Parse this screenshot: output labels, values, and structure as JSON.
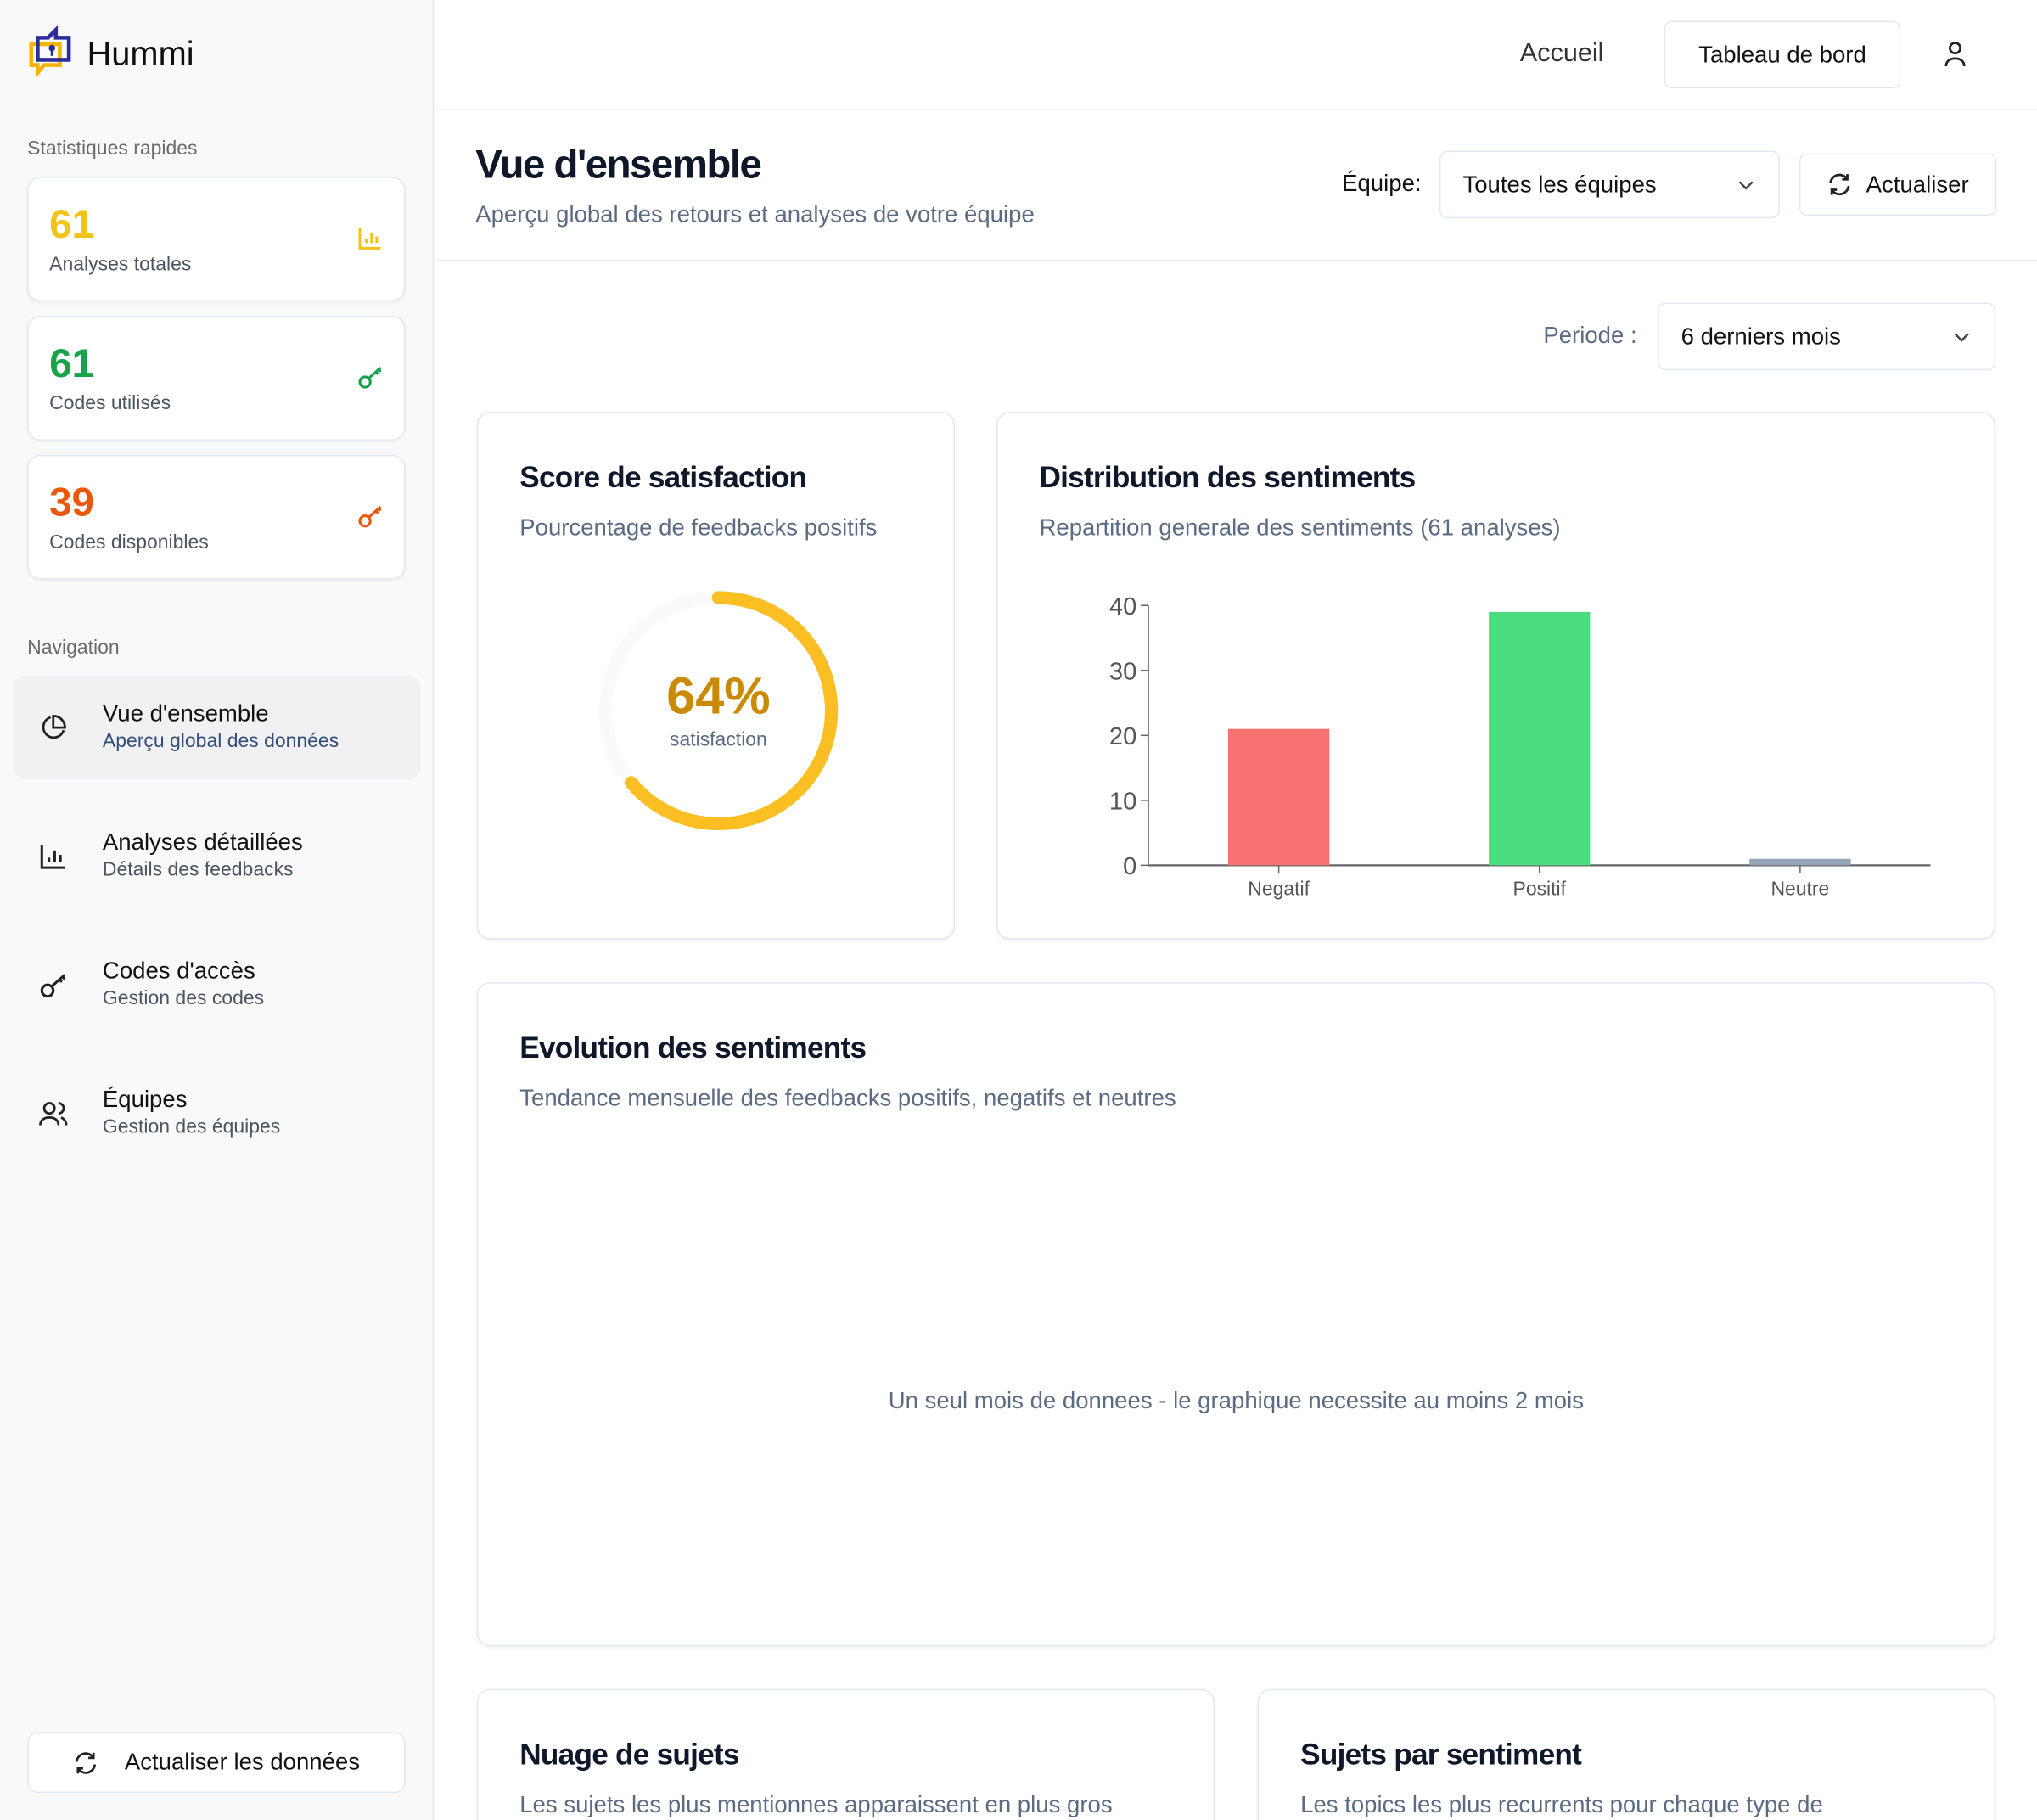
{
  "app": {
    "name": "Hummi"
  },
  "sidebar": {
    "quick_stats_label": "Statistiques rapides",
    "stats": [
      {
        "value": "61",
        "label": "Analyses totales",
        "color": "#f0c419",
        "icon": "bar-chart-icon"
      },
      {
        "value": "61",
        "label": "Codes utilisés",
        "color": "#16a34a",
        "icon": "key-icon"
      },
      {
        "value": "39",
        "label": "Codes disponibles",
        "color": "#ea580c",
        "icon": "key-icon"
      }
    ],
    "nav_label": "Navigation",
    "nav": [
      {
        "title": "Vue d'ensemble",
        "subtitle": "Aperçu global des données",
        "active": true,
        "icon": "pie-chart-icon"
      },
      {
        "title": "Analyses détaillées",
        "subtitle": "Détails des feedbacks",
        "icon": "bar-chart-icon"
      },
      {
        "title": "Codes d'accès",
        "subtitle": "Gestion des codes",
        "icon": "key-icon"
      },
      {
        "title": "Équipes",
        "subtitle": "Gestion des équipes",
        "icon": "users-icon"
      }
    ],
    "refresh_label": "Actualiser les données"
  },
  "topbar": {
    "home": "Accueil",
    "dashboard": "Tableau de bord"
  },
  "header": {
    "title": "Vue d'ensemble",
    "subtitle": "Aperçu global des retours et analyses de votre équipe",
    "team_label": "Équipe:",
    "team_value": "Toutes les équipes",
    "refresh": "Actualiser"
  },
  "filters": {
    "period_label": "Periode :",
    "period_value": "6 derniers mois"
  },
  "satisfaction": {
    "title": "Score de satisfaction",
    "subtitle": "Pourcentage de feedbacks positifs",
    "value_label": "64%",
    "value": 64,
    "caption": "satisfaction",
    "color": "#fbbf24"
  },
  "distribution": {
    "title": "Distribution des sentiments",
    "subtitle": "Repartition generale des sentiments (61 analyses)"
  },
  "evolution": {
    "title": "Evolution des sentiments",
    "subtitle": "Tendance mensuelle des feedbacks positifs, negatifs et neutres",
    "empty": "Un seul mois de donnees - le graphique necessite au moins 2 mois"
  },
  "cloud": {
    "title": "Nuage de sujets",
    "subtitle": "Les sujets les plus mentionnes apparaissent en plus gros"
  },
  "topics": {
    "title": "Sujets par sentiment",
    "subtitle": "Les topics les plus recurrents pour chaque type de"
  },
  "chart_data": {
    "type": "bar",
    "categories": [
      "Negatif",
      "Positif",
      "Neutre"
    ],
    "values": [
      21,
      39,
      1
    ],
    "colors": [
      "#f87171",
      "#4ade80",
      "#94a3b8"
    ],
    "ylim": [
      0,
      40
    ],
    "yticks": [
      "0",
      "10",
      "20",
      "30",
      "40"
    ],
    "grid": false
  }
}
